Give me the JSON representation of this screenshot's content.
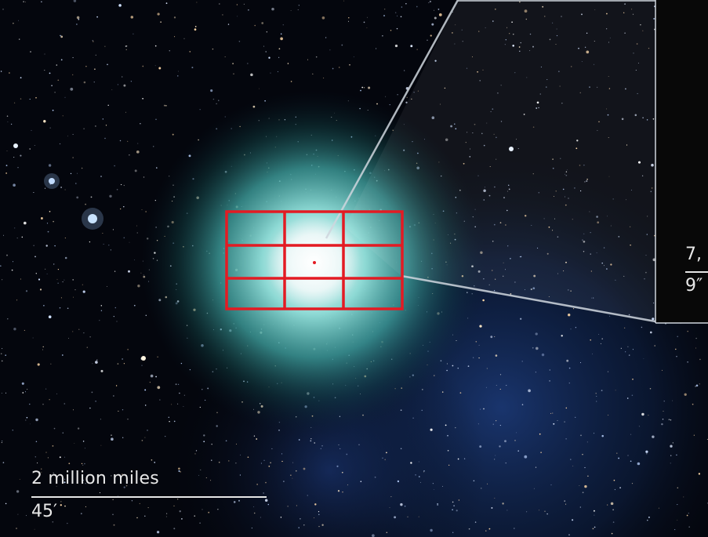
{
  "scale_bar": {
    "distance_label": "2 million miles",
    "angle_label": "45′"
  },
  "inset_scale": {
    "distance_label": "7,",
    "angle_label": "9″"
  },
  "colors": {
    "coma": "#63c9c2",
    "nucleus": "#ffffff",
    "grid": "#e31b23",
    "background": "#000000",
    "inset_frame": "#cfd6de"
  },
  "grid": {
    "columns": 3,
    "rows": 3
  }
}
